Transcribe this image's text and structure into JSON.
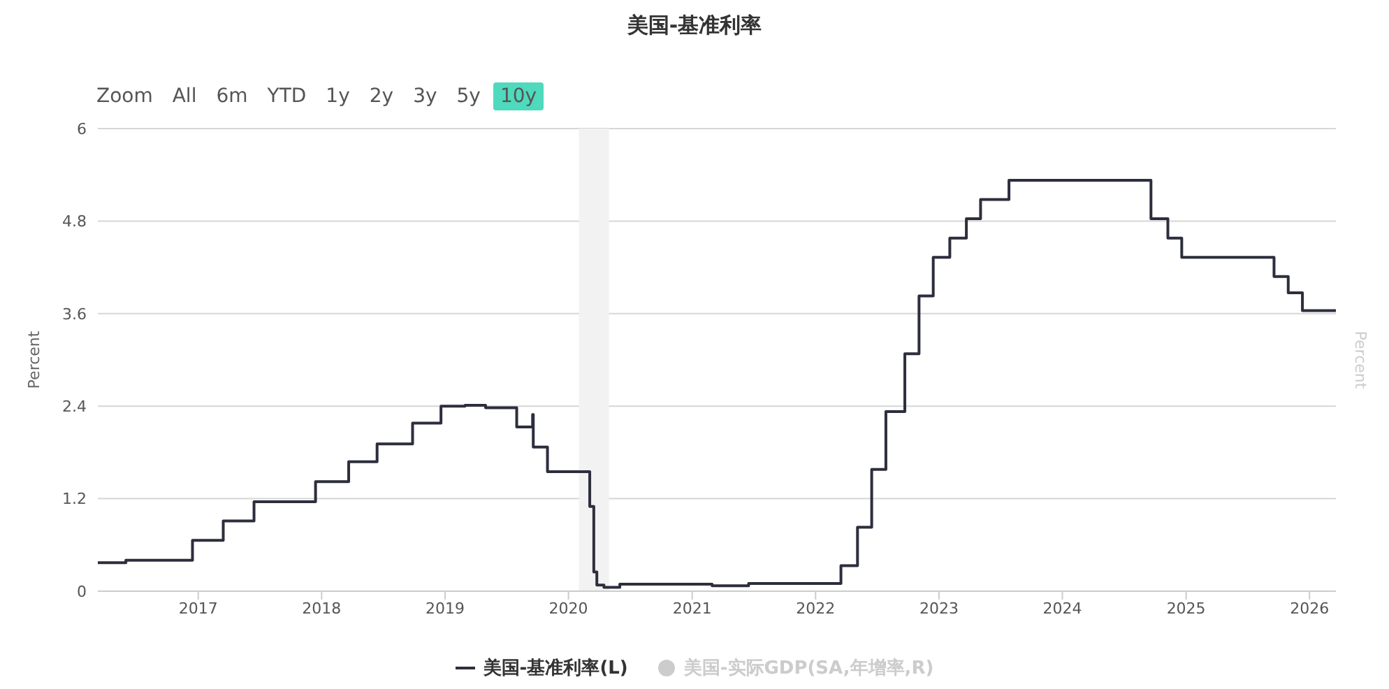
{
  "chart_data": {
    "type": "step",
    "title": "美国-基准利率",
    "ylabel": "Percent",
    "y2label": "Percent",
    "annotations": [
      "Zoom",
      "All",
      "6m",
      "YTD",
      "1y",
      "2y",
      "3y",
      "5y",
      "10y"
    ],
    "xlim": [
      "2016-03-10",
      "2026-03-20"
    ],
    "xticks": [
      "2017",
      "2018",
      "2019",
      "2020",
      "2021",
      "2022",
      "2023",
      "2024",
      "2025",
      "2026"
    ],
    "ylim": [
      0,
      6
    ],
    "yticks": [
      0,
      1.2,
      2.4,
      3.6,
      4.8,
      6
    ],
    "grid": "y",
    "legend": "bottom",
    "bands": [
      {
        "axis": "x",
        "from": "2020-02-01",
        "to": "2020-04-30",
        "color": "#f2f2f2"
      }
    ],
    "series": [
      {
        "name": "美国-基准利率(L)",
        "color": "#2d2e3d",
        "x": [
          "2016-03-10",
          "2016-06-01",
          "2016-12-15",
          "2017-03-16",
          "2017-06-15",
          "2017-12-14",
          "2018-03-22",
          "2018-06-14",
          "2018-09-27",
          "2018-12-20",
          "2019-03-01",
          "2019-05-01",
          "2019-06-01",
          "2019-08-01",
          "2019-09-17",
          "2019-09-19",
          "2019-10-31",
          "2020-03-04",
          "2020-03-16",
          "2020-03-25",
          "2020-04-15",
          "2020-06-01",
          "2021-01-01",
          "2021-03-01",
          "2021-06-17",
          "2022-03-17",
          "2022-05-05",
          "2022-06-16",
          "2022-07-28",
          "2022-09-22",
          "2022-11-03",
          "2022-12-15",
          "2023-02-02",
          "2023-03-23",
          "2023-05-04",
          "2023-07-27",
          "2024-09-19",
          "2024-11-08",
          "2024-12-19",
          "2025-09-18",
          "2025-10-30",
          "2025-12-11",
          "2026-03-20"
        ],
        "values": [
          0.37,
          0.4,
          0.66,
          0.91,
          1.16,
          1.42,
          1.68,
          1.91,
          2.18,
          2.4,
          2.41,
          2.38,
          2.38,
          2.13,
          2.29,
          1.87,
          1.55,
          1.1,
          0.25,
          0.08,
          0.05,
          0.09,
          0.09,
          0.07,
          0.1,
          0.33,
          0.83,
          1.58,
          2.33,
          3.08,
          3.83,
          4.33,
          4.58,
          4.83,
          5.08,
          5.33,
          4.83,
          4.58,
          4.33,
          4.08,
          3.87,
          3.64,
          3.64
        ]
      },
      {
        "name": "美国-实际GDP(SA,年增率,R)",
        "color": "#cccccc",
        "axis": "y2"
      }
    ]
  }
}
